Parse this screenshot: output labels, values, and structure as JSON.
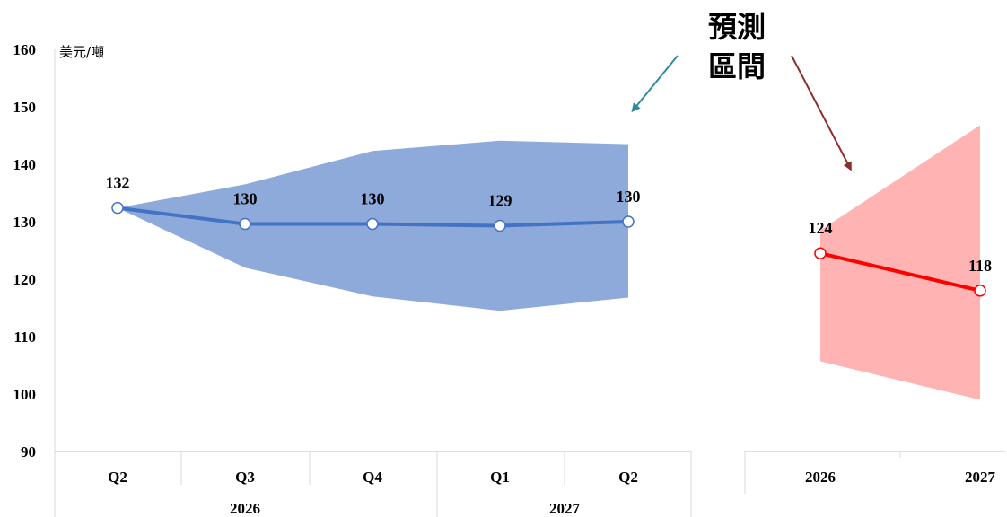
{
  "chart_data": [
    {
      "type": "line",
      "unit_label": "美元/噸",
      "ylim": [
        90,
        160
      ],
      "y_ticks": [
        90,
        100,
        110,
        120,
        130,
        140,
        150,
        160
      ],
      "categories": [
        "Q2",
        "Q3",
        "Q4",
        "Q1",
        "Q2"
      ],
      "year_groups": [
        {
          "label": "2026",
          "span": [
            0,
            2
          ]
        },
        {
          "label": "2027",
          "span": [
            3,
            4
          ]
        }
      ],
      "series": [
        {
          "values": [
            132.4,
            129.6,
            129.6,
            129.3,
            130.0
          ],
          "data_labels": [
            "132",
            "130",
            "130",
            "129",
            "130"
          ],
          "color": "#4472c4",
          "band_upper": [
            132.4,
            136.5,
            142.3,
            144.1,
            143.5
          ],
          "band_lower": [
            132.4,
            122.0,
            117.0,
            114.5,
            116.8
          ],
          "band_color": "#8eaadb"
        }
      ]
    },
    {
      "type": "line",
      "ylim": [
        90,
        160
      ],
      "categories": [
        "2026",
        "2027"
      ],
      "series": [
        {
          "values": [
            124.5,
            118.0
          ],
          "data_labels": [
            "124",
            "118"
          ],
          "color": "#ff0000",
          "band_upper": [
            128.5,
            146.8
          ],
          "band_lower": [
            105.7,
            99.0
          ],
          "band_color": "#ffb3b3"
        }
      ]
    }
  ],
  "annotation": {
    "line1": "預測",
    "line2": "區間",
    "arrow_left_color": "#2e8b9b",
    "arrow_right_color": "#8b2e2e"
  }
}
